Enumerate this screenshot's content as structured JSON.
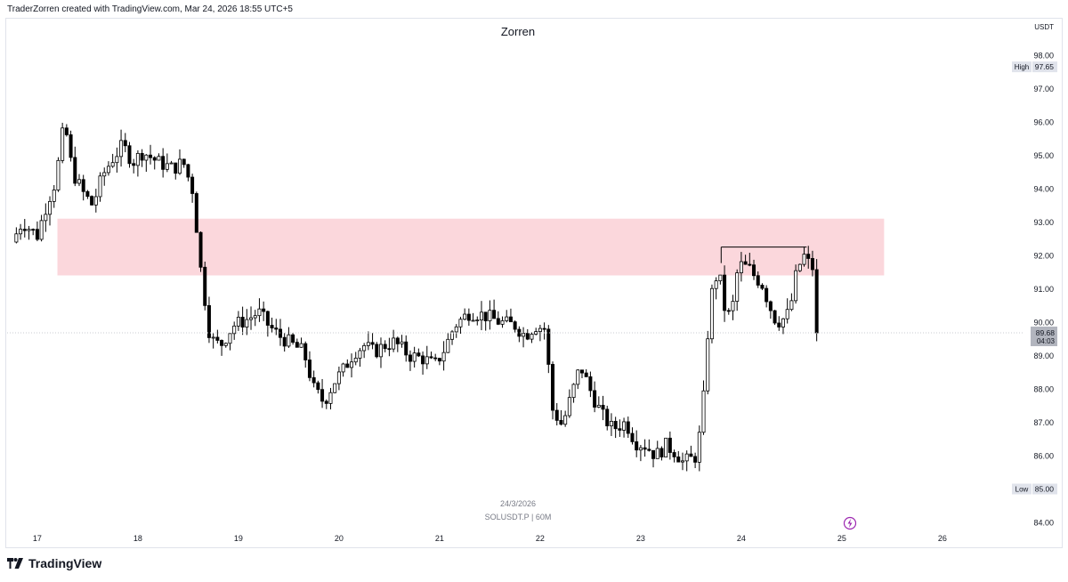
{
  "header": {
    "creator_line": "TraderZorren created with TradingView.com, Mar 24, 2026 18:55 UTC+5"
  },
  "brand": {
    "logo_text": "TradingView"
  },
  "colors": {
    "bull_fill": "#ffffff",
    "bear_fill": "#000000",
    "candle_stroke": "#000000",
    "zone": "#f8bcc4",
    "axis_text": "#131722",
    "frame": "#e0e3eb",
    "price_label_bg": "#b2b5be",
    "highlow_bg": "#e0e3eb",
    "alert_icon": "#9c27b0"
  },
  "chart_data": {
    "type": "candlestick",
    "title": "Zorren",
    "symbol": "SOLUSDT.P | 60M",
    "date_label": "24/3/2026",
    "currency": "USDT",
    "y_ticks": [
      "98.00",
      "97.00",
      "96.00",
      "95.00",
      "94.00",
      "93.00",
      "92.00",
      "91.00",
      "90.00",
      "89.00",
      "88.00",
      "87.00",
      "86.00",
      "85.00",
      "84.00"
    ],
    "x_ticks": [
      "17",
      "18",
      "19",
      "20",
      "21",
      "22",
      "23",
      "24",
      "25",
      "26"
    ],
    "ylim": [
      83.6,
      98.6
    ],
    "high": {
      "label": "High",
      "value": "97.65"
    },
    "low": {
      "label": "Low",
      "value": "85.00"
    },
    "last_price": {
      "value": "89.68",
      "countdown": "04:03"
    },
    "zone": {
      "upper": 93.1,
      "lower": 91.4,
      "x_start": 17.2,
      "x_end": 25.42
    },
    "range_top_line": {
      "y": 92.25,
      "x_start": 23.8,
      "x_end": 24.65
    },
    "waypoints": [
      [
        16.75,
        92.4
      ],
      [
        16.85,
        93.0
      ],
      [
        17.0,
        92.6
      ],
      [
        17.1,
        93.6
      ],
      [
        17.18,
        94.2
      ],
      [
        17.27,
        96.0
      ],
      [
        17.35,
        94.5
      ],
      [
        17.45,
        93.9
      ],
      [
        17.55,
        93.5
      ],
      [
        17.65,
        94.4
      ],
      [
        17.75,
        94.9
      ],
      [
        17.85,
        95.3
      ],
      [
        17.95,
        94.8
      ],
      [
        18.05,
        95.1
      ],
      [
        18.2,
        94.8
      ],
      [
        18.35,
        94.6
      ],
      [
        18.45,
        94.8
      ],
      [
        18.55,
        93.9
      ],
      [
        18.62,
        91.7
      ],
      [
        18.72,
        89.5
      ],
      [
        18.82,
        89.3
      ],
      [
        18.95,
        89.9
      ],
      [
        19.1,
        90.1
      ],
      [
        19.2,
        90.3
      ],
      [
        19.3,
        89.9
      ],
      [
        19.4,
        89.6
      ],
      [
        19.55,
        89.3
      ],
      [
        19.65,
        89.1
      ],
      [
        19.75,
        88.0
      ],
      [
        19.85,
        87.6
      ],
      [
        19.95,
        88.2
      ],
      [
        20.05,
        88.6
      ],
      [
        20.15,
        89.1
      ],
      [
        20.25,
        89.3
      ],
      [
        20.35,
        89.1
      ],
      [
        20.45,
        89.3
      ],
      [
        20.55,
        89.4
      ],
      [
        20.7,
        89.0
      ],
      [
        20.85,
        88.9
      ],
      [
        20.95,
        88.7
      ],
      [
        21.05,
        89.2
      ],
      [
        21.15,
        89.9
      ],
      [
        21.3,
        90.3
      ],
      [
        21.45,
        90.2
      ],
      [
        21.6,
        90.0
      ],
      [
        21.75,
        89.9
      ],
      [
        21.85,
        89.6
      ],
      [
        21.95,
        89.9
      ],
      [
        22.05,
        89.8
      ],
      [
        22.12,
        87.4
      ],
      [
        22.22,
        86.9
      ],
      [
        22.32,
        87.9
      ],
      [
        22.4,
        88.7
      ],
      [
        22.52,
        87.8
      ],
      [
        22.62,
        87.2
      ],
      [
        22.72,
        86.8
      ],
      [
        22.85,
        87.0
      ],
      [
        22.95,
        86.4
      ],
      [
        23.05,
        86.3
      ],
      [
        23.15,
        86.0
      ],
      [
        23.25,
        86.3
      ],
      [
        23.35,
        86.1
      ],
      [
        23.42,
        85.8
      ],
      [
        23.5,
        85.9
      ],
      [
        23.56,
        86.0
      ],
      [
        23.62,
        87.5
      ],
      [
        23.67,
        89.8
      ],
      [
        23.72,
        91.2
      ],
      [
        23.78,
        91.5
      ],
      [
        23.82,
        90.5
      ],
      [
        23.9,
        90.1
      ],
      [
        23.95,
        91.4
      ],
      [
        24.0,
        91.7
      ],
      [
        24.08,
        91.6
      ],
      [
        24.15,
        91.3
      ],
      [
        24.2,
        91.2
      ],
      [
        24.28,
        90.5
      ],
      [
        24.35,
        90.0
      ],
      [
        24.42,
        90.1
      ],
      [
        24.48,
        90.3
      ],
      [
        24.55,
        91.5
      ],
      [
        24.62,
        92.0
      ],
      [
        24.66,
        91.8
      ],
      [
        24.72,
        91.6
      ],
      [
        24.76,
        89.68
      ]
    ]
  }
}
